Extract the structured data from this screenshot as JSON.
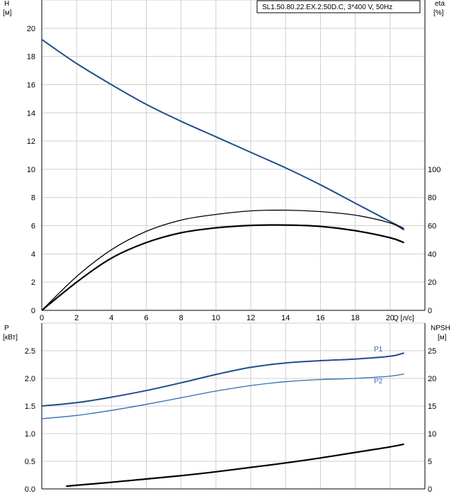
{
  "chart_data": [
    {
      "type": "line",
      "title": "SL1.50.80.22.EX.2.50D.C, 3*400 V, 50Hz",
      "xlabel": "Q [л/с]",
      "ylabel_left": {
        "name": "H",
        "unit": "[м]"
      },
      "ylabel_right": {
        "name": "eta",
        "unit": "[%]"
      },
      "xlim": [
        0,
        22
      ],
      "ylim_left": [
        0,
        22
      ],
      "ylim_right": [
        0,
        220
      ],
      "x_ticks": [
        "0",
        "2",
        "4",
        "6",
        "8",
        "10",
        "12",
        "14",
        "16",
        "18",
        "20"
      ],
      "y_ticks_left": [
        "0",
        "2",
        "4",
        "6",
        "8",
        "10",
        "12",
        "14",
        "16",
        "18",
        "20"
      ],
      "y_ticks_right": [
        "0",
        "20",
        "40",
        "60",
        "80",
        "100"
      ],
      "grid": true,
      "series": [
        {
          "axis": "left",
          "color": "#1f4e8c",
          "x": [
            0,
            2,
            4,
            6,
            8,
            10,
            12,
            14,
            16,
            18,
            20,
            20.8
          ],
          "values": [
            19.2,
            17.5,
            16.0,
            14.6,
            13.4,
            12.3,
            11.2,
            10.1,
            8.9,
            7.6,
            6.3,
            5.8
          ]
        },
        {
          "axis": "right",
          "color": "#000000",
          "x": [
            0,
            2,
            4,
            6,
            8,
            10,
            12,
            14,
            16,
            18,
            20,
            20.8
          ],
          "values": [
            0,
            24,
            43,
            56,
            64,
            68,
            70.5,
            71,
            70,
            67.5,
            62,
            57
          ]
        },
        {
          "axis": "right",
          "color": "#000000",
          "x": [
            0,
            2,
            4,
            6,
            8,
            10,
            12,
            14,
            16,
            18,
            20,
            20.8
          ],
          "values": [
            0,
            20,
            37,
            48,
            55,
            58.5,
            60.2,
            60.5,
            59.5,
            56.5,
            51.5,
            48
          ]
        }
      ]
    },
    {
      "type": "line",
      "ylabel_left": {
        "name": "P",
        "unit": "[кВт]"
      },
      "ylabel_right": {
        "name": "NPSH",
        "unit": "[м]"
      },
      "xlim": [
        0,
        22
      ],
      "ylim_left": [
        0,
        3.0
      ],
      "ylim_right": [
        0,
        30
      ],
      "y_ticks_left": [
        "0.0",
        "0.5",
        "1.0",
        "1.5",
        "2.0",
        "2.5"
      ],
      "y_ticks_right": [
        "0",
        "5",
        "10",
        "15",
        "20",
        "25"
      ],
      "grid": true,
      "series": [
        {
          "name": "P1",
          "axis": "left",
          "color": "#1f4e8c",
          "x": [
            0,
            2,
            4,
            6,
            8,
            10,
            12,
            14,
            16,
            18,
            20,
            20.8
          ],
          "values": [
            1.5,
            1.56,
            1.66,
            1.78,
            1.92,
            2.07,
            2.2,
            2.28,
            2.32,
            2.35,
            2.4,
            2.46
          ]
        },
        {
          "name": "P2",
          "axis": "left",
          "color": "#2f6fb0",
          "x": [
            0,
            2,
            4,
            6,
            8,
            10,
            12,
            14,
            16,
            18,
            20,
            20.8
          ],
          "values": [
            1.27,
            1.33,
            1.42,
            1.53,
            1.65,
            1.77,
            1.87,
            1.94,
            1.98,
            2.0,
            2.04,
            2.08
          ]
        },
        {
          "axis": "right",
          "color": "#000000",
          "x": [
            1.4,
            4,
            6,
            8,
            10,
            12,
            14,
            16,
            18,
            20,
            20.8
          ],
          "values": [
            0.5,
            1.2,
            1.8,
            2.4,
            3.1,
            3.9,
            4.7,
            5.6,
            6.6,
            7.6,
            8.1
          ]
        }
      ]
    }
  ]
}
